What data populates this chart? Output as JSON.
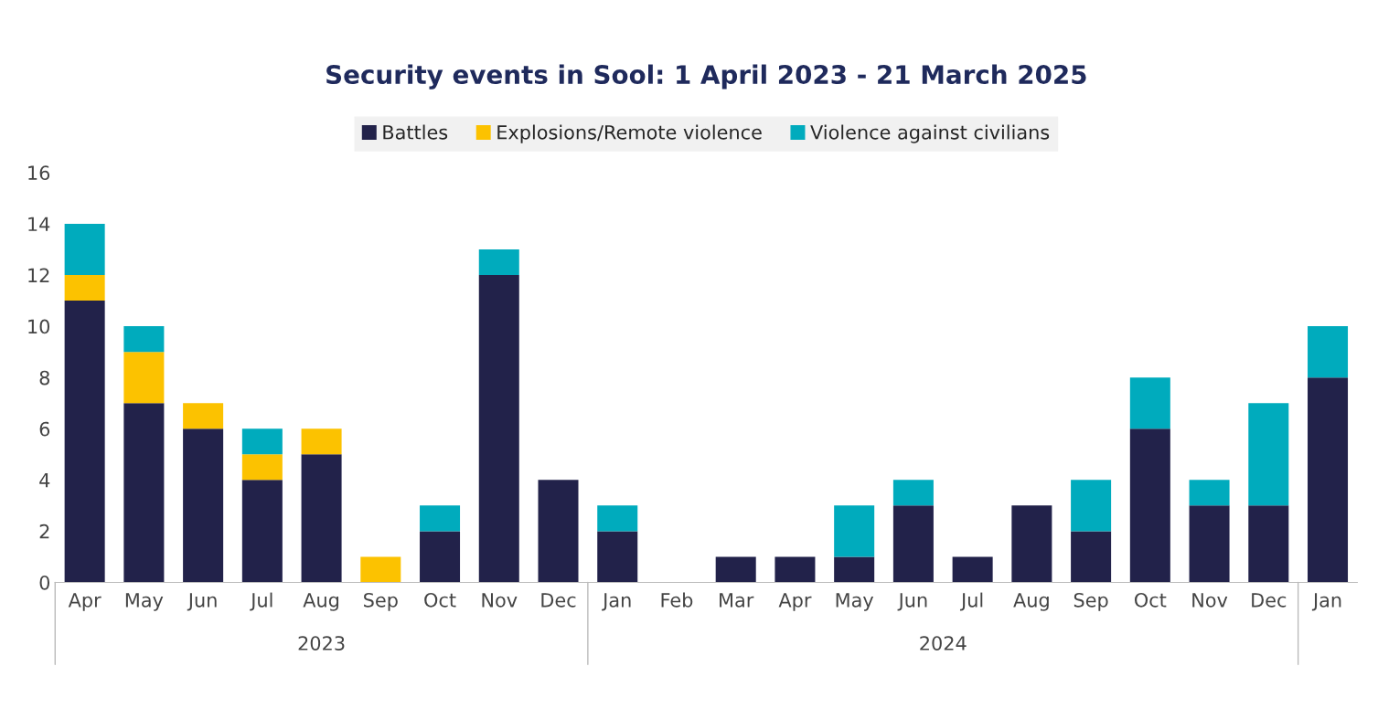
{
  "chart_data": {
    "type": "bar",
    "title": "Security events in Sool: 1 April 2023 - 21 March 2025",
    "stacked": true,
    "categories": [
      "Apr",
      "May",
      "Jun",
      "Jul",
      "Aug",
      "Sep",
      "Oct",
      "Nov",
      "Dec",
      "Jan",
      "Feb",
      "Mar",
      "Apr",
      "May",
      "Jun",
      "Jul",
      "Aug",
      "Sep",
      "Oct",
      "Nov",
      "Dec",
      "Jan"
    ],
    "series": [
      {
        "name": "Battles",
        "color": "#22224a",
        "values": [
          11,
          7,
          6,
          4,
          5,
          0,
          2,
          12,
          4,
          2,
          0,
          1,
          1,
          1,
          3,
          1,
          3,
          2,
          6,
          3,
          3,
          8
        ]
      },
      {
        "name": "Explosions/Remote violence",
        "color": "#fcc200",
        "values": [
          1,
          2,
          1,
          1,
          1,
          1,
          0,
          0,
          0,
          0,
          0,
          0,
          0,
          0,
          0,
          0,
          0,
          0,
          0,
          0,
          0,
          0
        ]
      },
      {
        "name": "Violence against civilians",
        "color": "#00abbd",
        "values": [
          2,
          1,
          0,
          1,
          0,
          0,
          1,
          1,
          0,
          1,
          0,
          0,
          0,
          2,
          1,
          0,
          0,
          2,
          2,
          1,
          4,
          2
        ]
      }
    ],
    "ylim": [
      0,
      16
    ],
    "yticks": [
      0,
      2,
      4,
      6,
      8,
      10,
      12,
      14,
      16
    ],
    "grid": false,
    "legend": "top",
    "annotations": [
      "2023",
      "2024"
    ]
  }
}
